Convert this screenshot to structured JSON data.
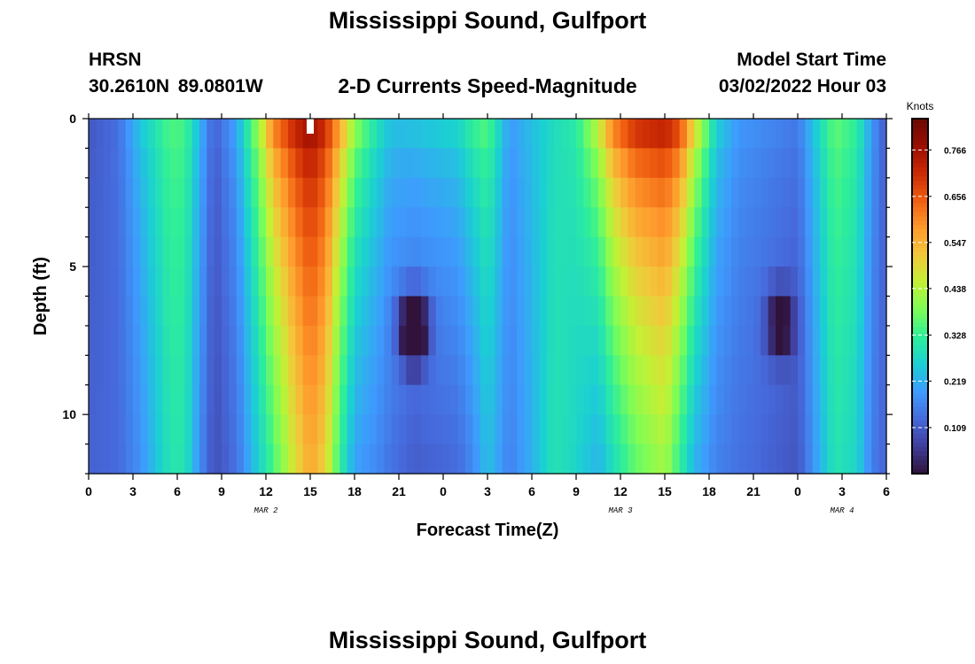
{
  "header": {
    "title": "Mississippi Sound, Gulfport",
    "station": "HRSN",
    "location": "30.2610N  89.0801W",
    "plot_title": "2-D Currents Speed-Magnitude",
    "model_start_label": "Model Start Time",
    "model_start_value": "03/02/2022 Hour 03",
    "footer_title": "Mississippi Sound, Gulfport"
  },
  "colors": {
    "background": "#ffffff",
    "axis": "#000000",
    "colormap": [
      "#30123b",
      "#3f3e9c",
      "#4669db",
      "#3e9bfe",
      "#1bcfd4",
      "#2eee9a",
      "#7cfd57",
      "#c2f135",
      "#f2c83a",
      "#fe992c",
      "#f05f11",
      "#cb2a04",
      "#9a0d01",
      "#6b0a01"
    ]
  },
  "chart_data": {
    "type": "heatmap",
    "title": "2-D Currents Speed-Magnitude",
    "xlabel": "Forecast Time(Z)",
    "ylabel": "Depth (ft)",
    "x_range_hours": [
      0,
      54
    ],
    "x_ticks": [
      0,
      3,
      6,
      9,
      12,
      15,
      18,
      21,
      24,
      27,
      30,
      33,
      36,
      39,
      42,
      45,
      48,
      51,
      54
    ],
    "x_tick_labels": [
      "0",
      "3",
      "6",
      "9",
      "12",
      "15",
      "18",
      "21",
      "0",
      "3",
      "6",
      "9",
      "12",
      "15",
      "18",
      "21",
      "0",
      "3",
      "6"
    ],
    "date_labels": [
      {
        "text": "MAR 2",
        "hour": 12
      },
      {
        "text": "MAR 3",
        "hour": 36
      },
      {
        "text": "MAR 4",
        "hour": 51
      }
    ],
    "y_range": [
      0,
      12
    ],
    "y_ticks": [
      0,
      5,
      10
    ],
    "y_tick_labels": [
      "0",
      "5",
      "10"
    ],
    "y_minor_step": 1,
    "y_reversed": true,
    "colorbar": {
      "title": "Knots",
      "min": 0.0,
      "max": 0.84,
      "ticks": [
        0.109,
        0.219,
        0.328,
        0.438,
        0.547,
        0.656,
        0.766
      ],
      "tick_labels": [
        "0.109",
        "0.219",
        "0.328",
        "0.438",
        "0.547",
        "0.656",
        "0.766"
      ]
    },
    "time_step_hours": 0.5,
    "depth_levels": 12,
    "depth_profile_exponent": 0.5,
    "columns": [
      {
        "hour": 0,
        "surface": 0.1,
        "bottom": 0.12
      },
      {
        "hour": 2,
        "surface": 0.14,
        "bottom": 0.13
      },
      {
        "hour": 3.5,
        "surface": 0.26,
        "bottom": 0.18
      },
      {
        "hour": 5.5,
        "surface": 0.36,
        "bottom": 0.3
      },
      {
        "hour": 6.5,
        "surface": 0.35,
        "bottom": 0.3
      },
      {
        "hour": 7.5,
        "surface": 0.24,
        "bottom": 0.18
      },
      {
        "hour": 8.5,
        "surface": 0.12,
        "bottom": 0.09
      },
      {
        "hour": 10,
        "surface": 0.22,
        "bottom": 0.14
      },
      {
        "hour": 11.5,
        "surface": 0.45,
        "bottom": 0.26
      },
      {
        "hour": 12.5,
        "surface": 0.66,
        "bottom": 0.34
      },
      {
        "hour": 14,
        "surface": 0.78,
        "bottom": 0.48
      },
      {
        "hour": 15,
        "surface": 0.82,
        "bottom": 0.56
      },
      {
        "hour": 16,
        "surface": 0.76,
        "bottom": 0.5
      },
      {
        "hour": 17,
        "surface": 0.62,
        "bottom": 0.32
      },
      {
        "hour": 18,
        "surface": 0.45,
        "bottom": 0.2
      },
      {
        "hour": 19.5,
        "surface": 0.32,
        "bottom": 0.17
      },
      {
        "hour": 20.5,
        "surface": 0.26,
        "bottom": 0.14
      },
      {
        "hour": 22,
        "surface": 0.27,
        "bottom": 0.11
      },
      {
        "hour": 25,
        "surface": 0.3,
        "bottom": 0.13
      },
      {
        "hour": 26,
        "surface": 0.36,
        "bottom": 0.17
      },
      {
        "hour": 27,
        "surface": 0.38,
        "bottom": 0.24
      },
      {
        "hour": 28.5,
        "surface": 0.2,
        "bottom": 0.16
      },
      {
        "hour": 30,
        "surface": 0.24,
        "bottom": 0.22
      },
      {
        "hour": 31.5,
        "surface": 0.28,
        "bottom": 0.3
      },
      {
        "hour": 33,
        "surface": 0.32,
        "bottom": 0.27
      },
      {
        "hour": 34.5,
        "surface": 0.5,
        "bottom": 0.22
      },
      {
        "hour": 35.5,
        "surface": 0.68,
        "bottom": 0.28
      },
      {
        "hour": 37,
        "surface": 0.78,
        "bottom": 0.36
      },
      {
        "hour": 39,
        "surface": 0.8,
        "bottom": 0.42
      },
      {
        "hour": 40,
        "surface": 0.75,
        "bottom": 0.32
      },
      {
        "hour": 41,
        "surface": 0.55,
        "bottom": 0.22
      },
      {
        "hour": 42.5,
        "surface": 0.28,
        "bottom": 0.16
      },
      {
        "hour": 44,
        "surface": 0.2,
        "bottom": 0.14
      },
      {
        "hour": 46,
        "surface": 0.18,
        "bottom": 0.12
      },
      {
        "hour": 48,
        "surface": 0.16,
        "bottom": 0.1
      },
      {
        "hour": 49,
        "surface": 0.25,
        "bottom": 0.18
      },
      {
        "hour": 50.5,
        "surface": 0.38,
        "bottom": 0.3
      },
      {
        "hour": 52,
        "surface": 0.33,
        "bottom": 0.27
      },
      {
        "hour": 53,
        "surface": 0.2,
        "bottom": 0.16
      },
      {
        "hour": 54,
        "surface": 0.1,
        "bottom": 0.12
      }
    ],
    "anomalies": [
      {
        "hour": 22,
        "depth": 7,
        "value": -0.24,
        "radius_hours": 0.9,
        "radius_depth": 0.9
      },
      {
        "hour": 22,
        "depth": 6,
        "value": -0.16,
        "radius_hours": 1.0,
        "radius_depth": 0.8
      },
      {
        "hour": 46.8,
        "depth": 6,
        "value": -0.13,
        "radius_hours": 0.9,
        "radius_depth": 0.9
      },
      {
        "hour": 46.8,
        "depth": 7,
        "value": -0.1,
        "radius_hours": 0.9,
        "radius_depth": 0.8
      },
      {
        "hour": 15,
        "depth": 0,
        "value": 0.8,
        "radius_hours": 0.2,
        "radius_depth": 0.3,
        "blank": true
      }
    ]
  }
}
